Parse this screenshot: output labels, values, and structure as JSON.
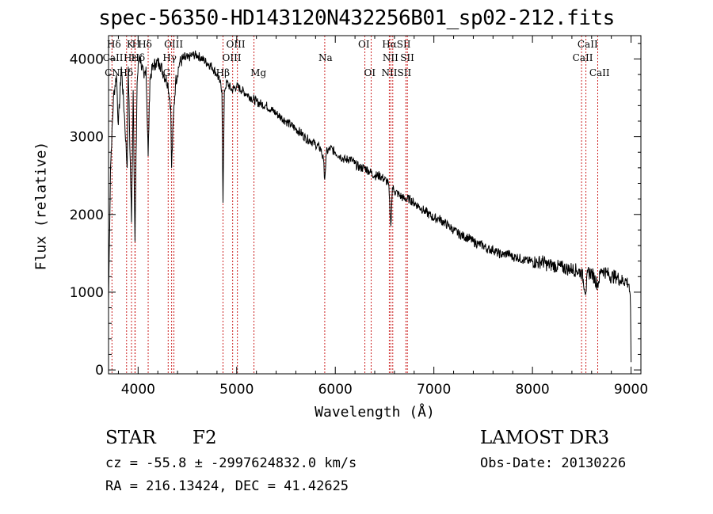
{
  "chart_data": {
    "type": "line",
    "title": "spec-56350-HD143120N432256B01_sp02-212.fits",
    "xlabel": "Wavelength (Å)",
    "ylabel": "Flux (relative)",
    "xlim": [
      3700,
      9100
    ],
    "ylim": [
      -50,
      4300
    ],
    "xticks": [
      4000,
      5000,
      6000,
      7000,
      8000,
      9000
    ],
    "yticks": [
      0,
      1000,
      2000,
      3000,
      4000
    ],
    "series": [
      {
        "name": "spectrum",
        "x": [
          3700,
          3720,
          3750,
          3780,
          3800,
          3830,
          3860,
          3889,
          3900,
          3933,
          3950,
          3968,
          3990,
          4010,
          4030,
          4060,
          4080,
          4102,
          4120,
          4150,
          4180,
          4220,
          4260,
          4300,
          4330,
          4340,
          4360,
          4380,
          4420,
          4460,
          4500,
          4550,
          4600,
          4650,
          4700,
          4750,
          4800,
          4830,
          4850,
          4861,
          4875,
          4900,
          4950,
          5000,
          5050,
          5100,
          5150,
          5200,
          5250,
          5300,
          5350,
          5400,
          5450,
          5500,
          5550,
          5600,
          5650,
          5700,
          5750,
          5800,
          5850,
          5880,
          5893,
          5910,
          5950,
          6000,
          6050,
          6100,
          6150,
          6200,
          6250,
          6300,
          6350,
          6400,
          6450,
          6500,
          6540,
          6563,
          6580,
          6600,
          6650,
          6700,
          6750,
          6800,
          6850,
          6900,
          6950,
          7000,
          7050,
          7100,
          7150,
          7200,
          7250,
          7300,
          7350,
          7400,
          7450,
          7500,
          7550,
          7600,
          7650,
          7700,
          7750,
          7800,
          7850,
          7900,
          7950,
          8000,
          8050,
          8100,
          8150,
          8200,
          8250,
          8300,
          8350,
          8400,
          8450,
          8500,
          8542,
          8560,
          8600,
          8662,
          8700,
          8750,
          8800,
          8850,
          8900,
          8950,
          8980,
          8995,
          9000
        ],
        "y": [
          900,
          2600,
          3500,
          3800,
          3150,
          3900,
          3300,
          2600,
          3900,
          1900,
          3600,
          1650,
          3700,
          4050,
          3950,
          3750,
          3900,
          2750,
          3750,
          3900,
          3950,
          3950,
          3800,
          3700,
          3400,
          2600,
          3300,
          3700,
          3950,
          4000,
          4000,
          4050,
          4050,
          4000,
          3950,
          3900,
          3800,
          3700,
          3600,
          2150,
          3600,
          3700,
          3600,
          3650,
          3600,
          3550,
          3500,
          3450,
          3420,
          3400,
          3350,
          3300,
          3250,
          3200,
          3150,
          3100,
          3050,
          2980,
          2950,
          2900,
          2850,
          2700,
          2450,
          2800,
          2850,
          2800,
          2750,
          2700,
          2720,
          2650,
          2600,
          2600,
          2550,
          2500,
          2500,
          2450,
          2400,
          1850,
          2350,
          2300,
          2250,
          2200,
          2200,
          2150,
          2100,
          2050,
          2000,
          1950,
          1950,
          1900,
          1850,
          1800,
          1750,
          1720,
          1700,
          1650,
          1620,
          1600,
          1550,
          1550,
          1500,
          1480,
          1500,
          1450,
          1450,
          1420,
          1400,
          1400,
          1380,
          1400,
          1350,
          1350,
          1330,
          1320,
          1300,
          1300,
          1280,
          1250,
          1000,
          1250,
          1250,
          1100,
          1300,
          1250,
          1200,
          1200,
          1150,
          1150,
          1100,
          800,
          100
        ]
      }
    ],
    "lines": [
      {
        "label": "Hδ",
        "x": 4102
      },
      {
        "label": "K",
        "x": 3933
      },
      {
        "label": "H",
        "x": 3968
      },
      {
        "label": "CN",
        "x": 3883
      },
      {
        "label": "Hε",
        "x": 3970
      },
      {
        "label": "CaII",
        "x": 3735
      },
      {
        "label": "Hγ",
        "x": 4340
      },
      {
        "label": "G",
        "x": 4305
      },
      {
        "label": "OIII",
        "x": 4363
      },
      {
        "label": "Hβ",
        "x": 4861
      },
      {
        "label": "OIII",
        "x": 4959
      },
      {
        "label": "OIII",
        "x": 5007
      },
      {
        "label": "Mg",
        "x": 5175
      },
      {
        "label": "Na",
        "x": 5893
      },
      {
        "label": "OI",
        "x": 6300
      },
      {
        "label": "OI",
        "x": 6364
      },
      {
        "label": "NII",
        "x": 6548
      },
      {
        "label": "Hα",
        "x": 6563
      },
      {
        "label": "NII",
        "x": 6583
      },
      {
        "label": "SII",
        "x": 6716
      },
      {
        "label": "SII",
        "x": 6731
      },
      {
        "label": "CaII",
        "x": 8498
      },
      {
        "label": "CaII",
        "x": 8542
      },
      {
        "label": "CaII",
        "x": 8662
      }
    ],
    "labels": [
      {
        "text": "Hδ",
        "x": 3755,
        "row": 0
      },
      {
        "text": "K",
        "x": 3920,
        "row": 0
      },
      {
        "text": "H",
        "x": 3980,
        "row": 0
      },
      {
        "text": "Hδ",
        "x": 4070,
        "row": 0
      },
      {
        "text": "CaII",
        "x": 3745,
        "row": 1
      },
      {
        "text": "Hε",
        "x": 3920,
        "row": 1
      },
      {
        "text": "Hδ",
        "x": 4000,
        "row": 1
      },
      {
        "text": "CN",
        "x": 3740,
        "row": 2
      },
      {
        "text": "Hδ",
        "x": 3880,
        "row": 2
      },
      {
        "text": "OIII",
        "x": 4360,
        "row": 0
      },
      {
        "text": "Hγ",
        "x": 4320,
        "row": 1
      },
      {
        "text": "G",
        "x": 4290,
        "row": 2
      },
      {
        "text": "OIII",
        "x": 4990,
        "row": 0
      },
      {
        "text": "OIII",
        "x": 4950,
        "row": 1
      },
      {
        "text": "Hβ",
        "x": 4860,
        "row": 2
      },
      {
        "text": "Mg",
        "x": 5220,
        "row": 2
      },
      {
        "text": "Na",
        "x": 5900,
        "row": 1
      },
      {
        "text": "OI",
        "x": 6290,
        "row": 0
      },
      {
        "text": "OI",
        "x": 6350,
        "row": 2
      },
      {
        "text": "HαSII",
        "x": 6620,
        "row": 0
      },
      {
        "text": "NII",
        "x": 6560,
        "row": 1
      },
      {
        "text": "SII",
        "x": 6730,
        "row": 1
      },
      {
        "text": "NIISII",
        "x": 6620,
        "row": 2
      },
      {
        "text": "CaII",
        "x": 8560,
        "row": 0
      },
      {
        "text": "CaII",
        "x": 8510,
        "row": 1
      },
      {
        "text": "CaII",
        "x": 8680,
        "row": 2
      }
    ]
  },
  "info": {
    "object_class": "STAR",
    "subclass": "F2",
    "survey": "LAMOST DR3",
    "cz": "cz = -55.8 ± -2997624832.0 km/s",
    "obs_date": "Obs-Date: 20130226",
    "radec": "RA = 216.13424, DEC =  41.42625"
  },
  "colors": {
    "spectrum": "#000000",
    "line_marker": "#cc2222",
    "axis": "#000000"
  }
}
